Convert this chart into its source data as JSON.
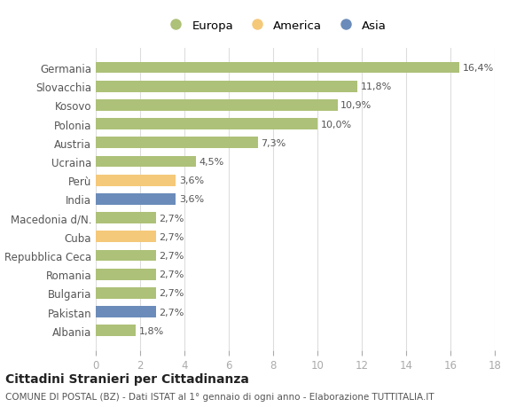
{
  "categories": [
    "Albania",
    "Pakistan",
    "Bulgaria",
    "Romania",
    "Repubblica Ceca",
    "Cuba",
    "Macedonia d/N.",
    "India",
    "Perù",
    "Ucraina",
    "Austria",
    "Polonia",
    "Kosovo",
    "Slovacchia",
    "Germania"
  ],
  "values": [
    1.8,
    2.7,
    2.7,
    2.7,
    2.7,
    2.7,
    2.7,
    3.6,
    3.6,
    4.5,
    7.3,
    10.0,
    10.9,
    11.8,
    16.4
  ],
  "labels": [
    "1,8%",
    "2,7%",
    "2,7%",
    "2,7%",
    "2,7%",
    "2,7%",
    "2,7%",
    "3,6%",
    "3,6%",
    "4,5%",
    "7,3%",
    "10,0%",
    "10,9%",
    "11,8%",
    "16,4%"
  ],
  "colors": [
    "#adc178",
    "#6b8cba",
    "#adc178",
    "#adc178",
    "#adc178",
    "#f5c97a",
    "#adc178",
    "#6b8cba",
    "#f5c97a",
    "#adc178",
    "#adc178",
    "#adc178",
    "#adc178",
    "#adc178",
    "#adc178"
  ],
  "legend": [
    {
      "label": "Europa",
      "color": "#adc178"
    },
    {
      "label": "America",
      "color": "#f5c97a"
    },
    {
      "label": "Asia",
      "color": "#6b8cba"
    }
  ],
  "title": "Cittadini Stranieri per Cittadinanza",
  "subtitle": "COMUNE DI POSTAL (BZ) - Dati ISTAT al 1° gennaio di ogni anno - Elaborazione TUTTITALIA.IT",
  "xlim": [
    0,
    18
  ],
  "xticks": [
    0,
    2,
    4,
    6,
    8,
    10,
    12,
    14,
    16,
    18
  ],
  "background_color": "#ffffff",
  "grid_color": "#dddddd"
}
